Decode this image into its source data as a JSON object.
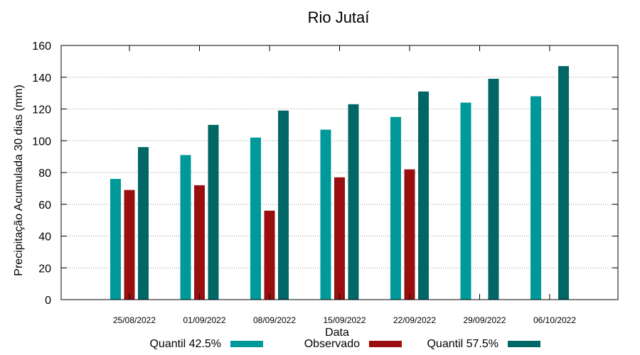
{
  "chart_data": {
    "type": "bar",
    "title": "Rio Jutaí",
    "xlabel": "Data",
    "ylabel": "Precipitação Acumulada 30 dias (mm)",
    "ylim": [
      0,
      160
    ],
    "yticks": [
      0,
      20,
      40,
      60,
      80,
      100,
      120,
      140,
      160
    ],
    "grid": true,
    "legend_position": "bottom",
    "categories": [
      "25/08/2022",
      "01/09/2022",
      "08/09/2022",
      "15/09/2022",
      "22/09/2022",
      "29/09/2022",
      "06/10/2022"
    ],
    "series": [
      {
        "name": "Quantil 42.5%",
        "color": "#009999",
        "values": [
          76,
          91,
          102,
          107,
          115,
          124,
          128
        ]
      },
      {
        "name": "Observado",
        "color": "#990f0f",
        "values": [
          69,
          72,
          56,
          77,
          82,
          null,
          null
        ]
      },
      {
        "name": "Quantil 57.5%",
        "color": "#006666",
        "values": [
          96,
          110,
          119,
          123,
          131,
          139,
          147
        ]
      }
    ]
  }
}
